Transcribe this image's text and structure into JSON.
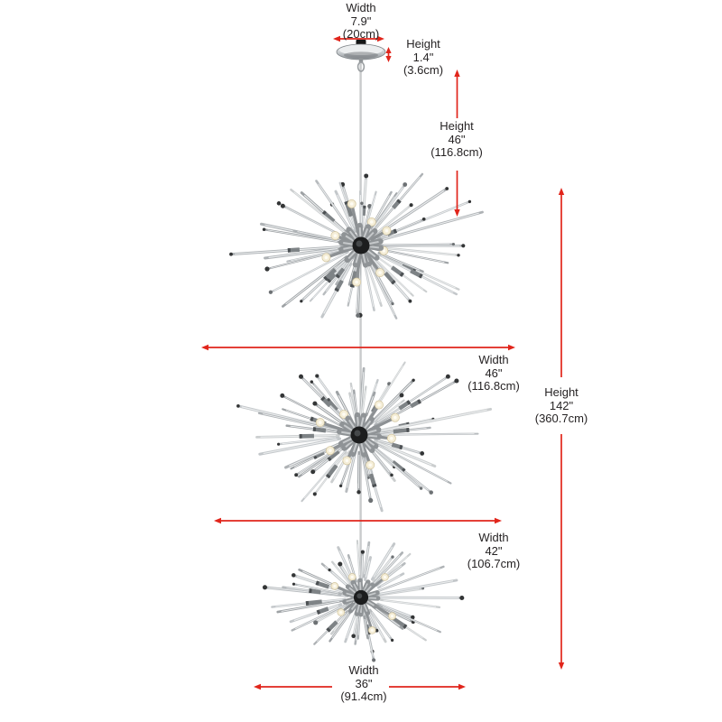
{
  "colors": {
    "dimension_red": "#e1251b",
    "ink": "#262324",
    "background": "#ffffff"
  },
  "dimensions": {
    "canopy_width": {
      "label": "Width",
      "inches": "7.9\"",
      "metric": "(20cm)"
    },
    "canopy_height": {
      "label": "Height",
      "inches": "1.4\"",
      "metric": "(3.6cm)"
    },
    "drop_height": {
      "label": "Height",
      "inches": "46\"",
      "metric": "(116.8cm)"
    },
    "tier1_width": {
      "label": "Width",
      "inches": "46\"",
      "metric": "(116.8cm)"
    },
    "total_height": {
      "label": "Height",
      "inches": "142\"",
      "metric": "(360.7cm)"
    },
    "tier2_width": {
      "label": "Width",
      "inches": "42\"",
      "metric": "(106.7cm)"
    },
    "tier3_width": {
      "label": "Width",
      "inches": "36\"",
      "metric": "(91.4cm)"
    }
  }
}
